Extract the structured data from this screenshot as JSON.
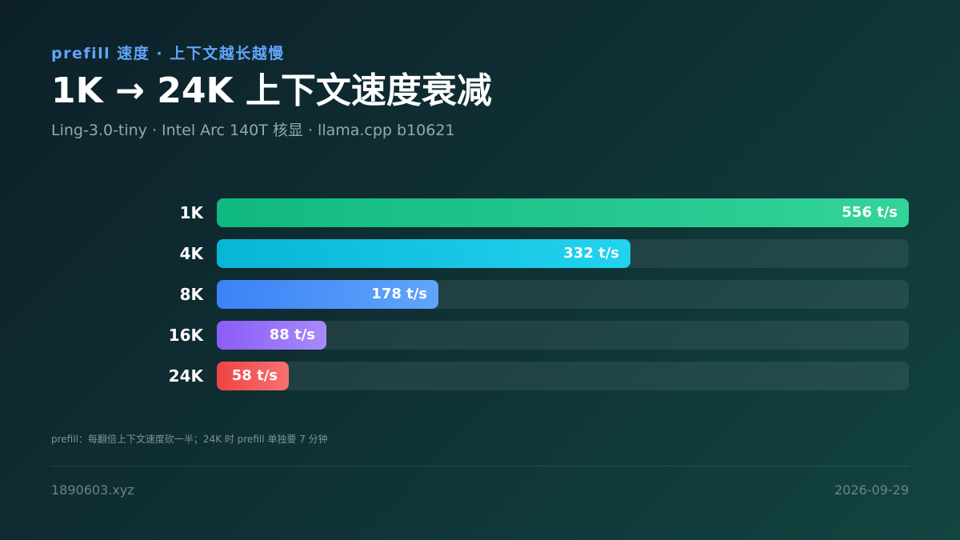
{
  "header": {
    "eyebrow": "prefill 速度 · 上下文越长越慢",
    "title": "1K → 24K 上下文速度衰减",
    "subtitle": "Ling-3.0-tiny · Intel Arc 140T 核显 · llama.cpp b10621"
  },
  "chart_data": {
    "type": "bar",
    "orientation": "horizontal",
    "categories": [
      "1K",
      "4K",
      "8K",
      "16K",
      "24K"
    ],
    "values": [
      556,
      332,
      178,
      88,
      58
    ],
    "value_labels": [
      "556 t/s",
      "332 t/s",
      "178 t/s",
      "88 t/s",
      "58 t/s"
    ],
    "unit": "t/s",
    "xlim": [
      0,
      556
    ],
    "grid": false,
    "legend": "none",
    "colors": [
      [
        "#10b981",
        "#34d399"
      ],
      [
        "#06b6d4",
        "#22d3ee"
      ],
      [
        "#3b82f6",
        "#60a5fa"
      ],
      [
        "#8b5cf6",
        "#a78bfa"
      ],
      [
        "#ef4444",
        "#f87171"
      ]
    ]
  },
  "note": "prefill：每翻倍上下文速度砍一半；24K 时 prefill 单独要 7 分钟",
  "footer": {
    "site": "1890603.xyz",
    "date": "2026-09-29"
  }
}
